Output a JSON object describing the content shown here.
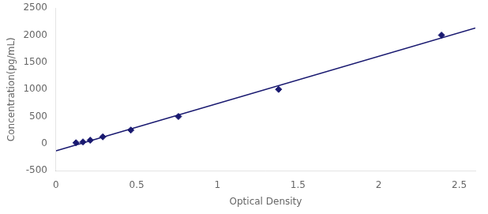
{
  "chart_data": {
    "type": "scatter",
    "xlabel": "Optical Density",
    "ylabel": "Concentration(pg/mL)",
    "xlim": [
      0,
      2.6
    ],
    "ylim": [
      -500,
      2500
    ],
    "xticks": [
      0,
      0.5,
      1,
      1.5,
      2,
      2.5
    ],
    "yticks": [
      -500,
      0,
      500,
      1000,
      1500,
      2000,
      2500
    ],
    "grid": false,
    "series": [
      {
        "type": "line",
        "color": "#191970",
        "line_style": "solid",
        "x": [
          0.0,
          2.6
        ],
        "values": [
          -132.2346,
          2133.5544
        ]
      },
      {
        "type": "scatter",
        "color": "#191970",
        "marker": "diamond",
        "x": [
          0.124,
          0.167,
          0.212,
          0.29,
          0.464,
          0.759,
          1.38,
          2.39
        ],
        "values": [
          15.625,
          31.25,
          62.5,
          125,
          250,
          500,
          1000,
          2000
        ]
      }
    ]
  }
}
